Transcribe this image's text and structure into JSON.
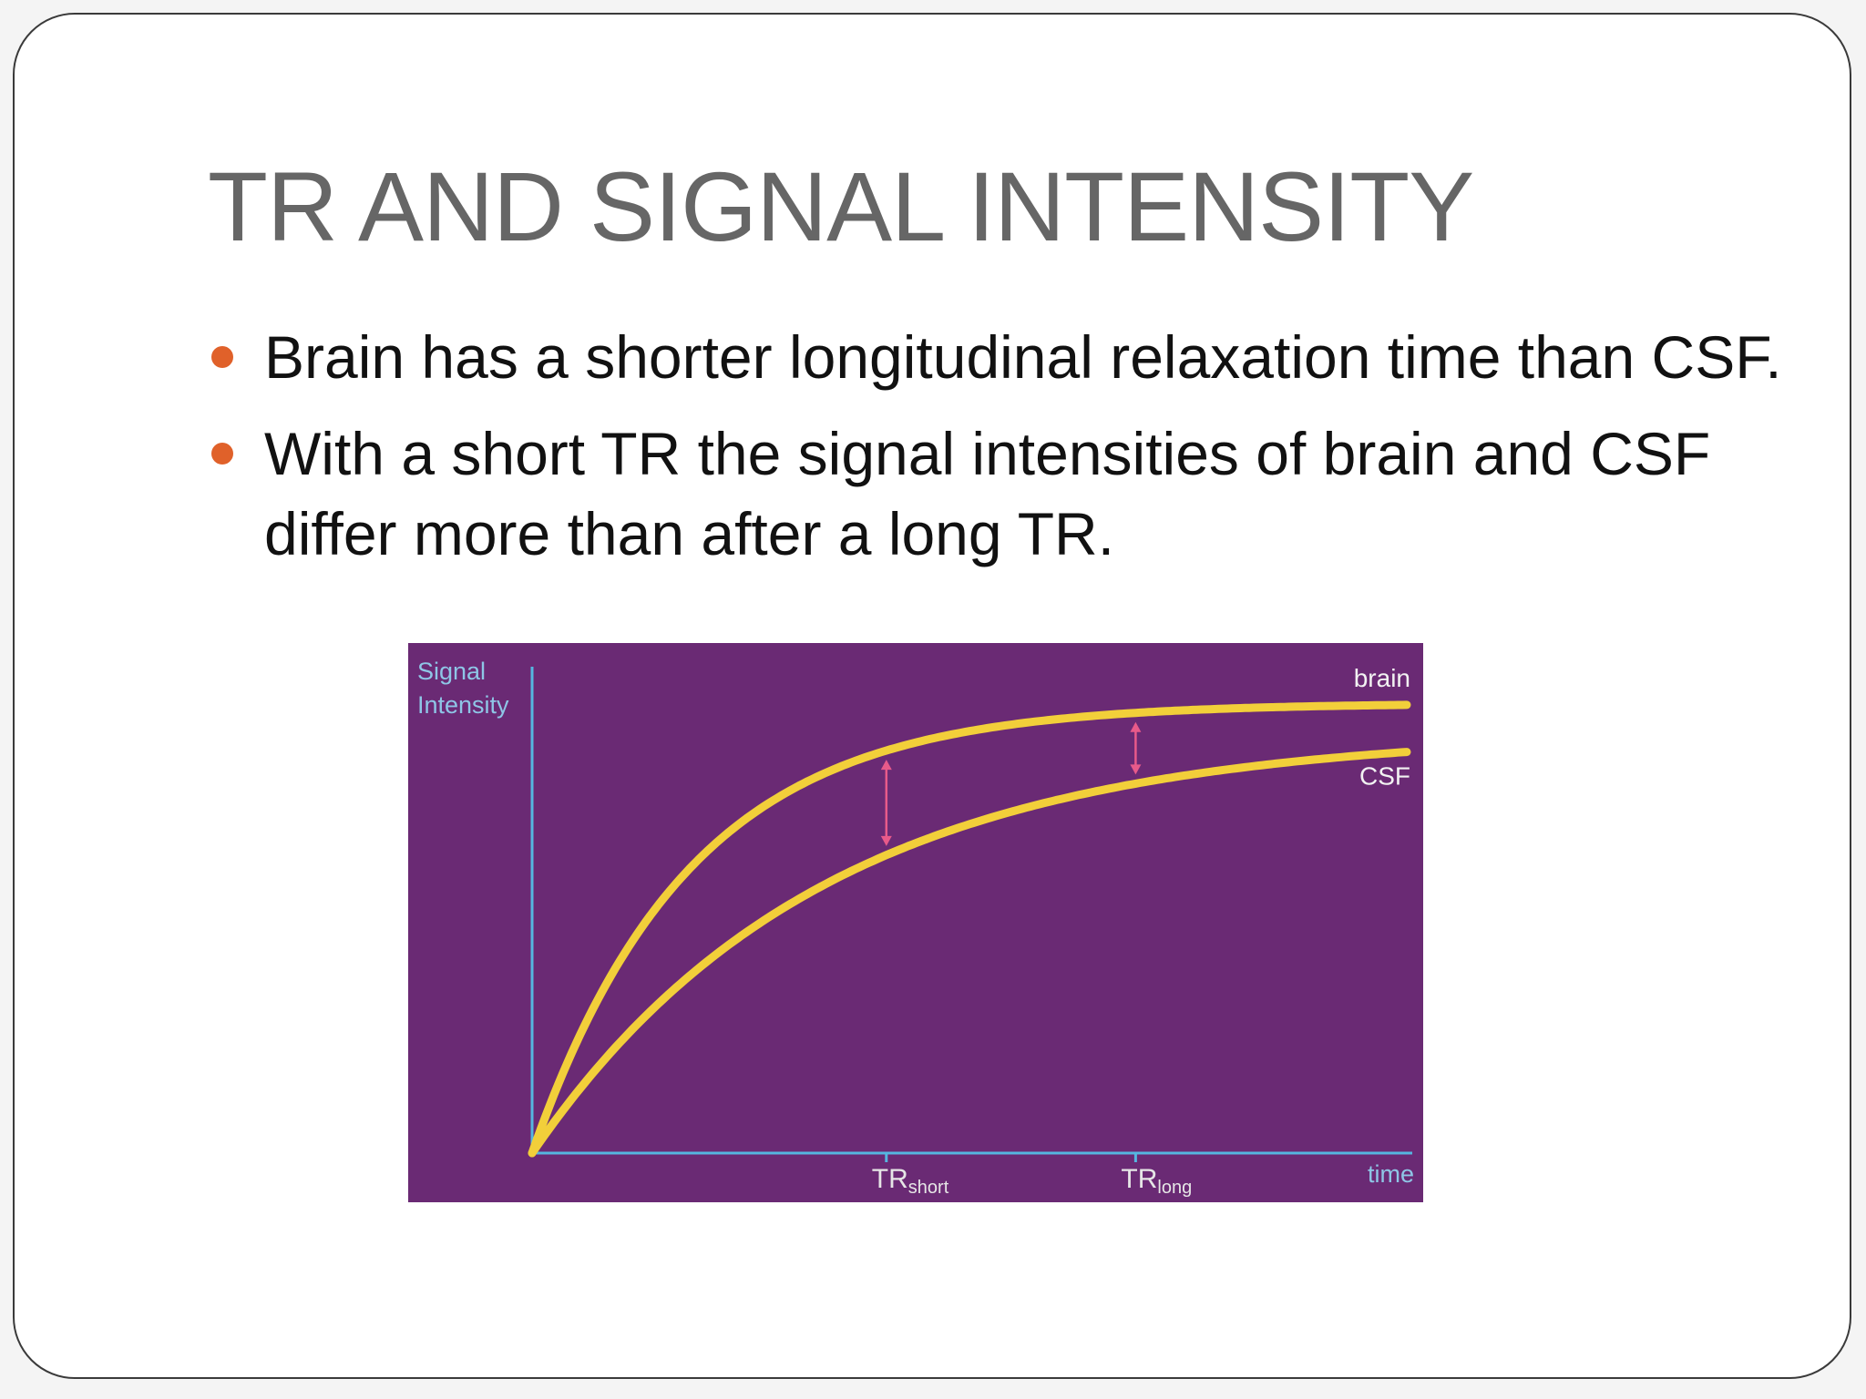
{
  "slide": {
    "title": "TR AND SIGNAL INTENSITY",
    "bullets": [
      {
        "text": "Brain has a shorter longitudinal relaxation time than CSF."
      },
      {
        "text": "With a short TR the signal intensities of brain and CSF differ more than after a long TR."
      }
    ]
  },
  "colors": {
    "bullet": "#e0612a",
    "chart_background": "#6a2a74",
    "curve": "#f2cf3a",
    "axis": "#55b6e0",
    "arrow": "#e85a8a"
  },
  "chart_data": {
    "type": "line",
    "ylabel_line1": "Signal",
    "ylabel_line2": "Intensity",
    "xlabel": "time",
    "x_ticks": [
      {
        "main": "TR",
        "sub": "short",
        "x": 0.405
      },
      {
        "main": "TR",
        "sub": "long",
        "x": 0.69
      }
    ],
    "series": [
      {
        "name": "brain",
        "T1": 0.18,
        "plateau": 0.95
      },
      {
        "name": "CSF",
        "T1": 0.33,
        "plateau": 0.89
      }
    ],
    "xlim": [
      0,
      1
    ],
    "ylim": [
      0,
      1
    ],
    "grid": false
  }
}
